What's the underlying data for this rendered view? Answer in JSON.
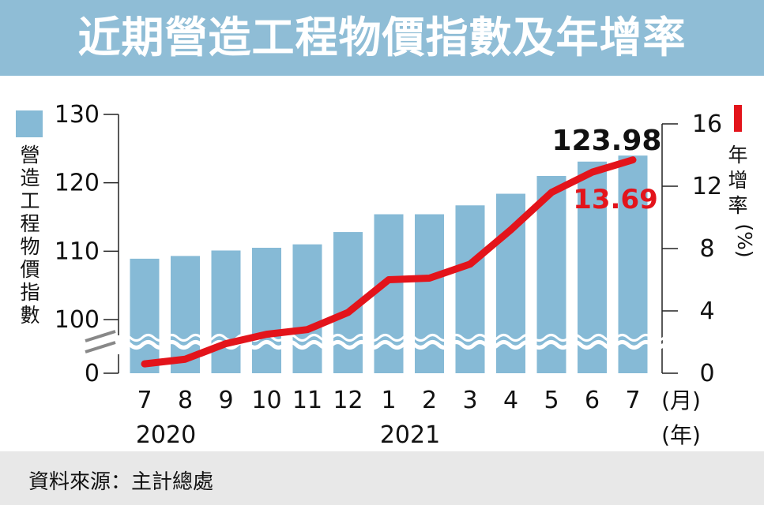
{
  "title": "近期營造工程物價指數及年增率",
  "source": "資料來源：主計總處",
  "legend": {
    "bar_label": "營造工程物價指數",
    "line_label": "年增率(%)"
  },
  "colors": {
    "bar": "#86bad6",
    "line": "#e3141b",
    "header": "#8fbdd6"
  },
  "chart_data": {
    "type": "bar+line",
    "categories": [
      "7",
      "8",
      "9",
      "10",
      "11",
      "12",
      "1",
      "2",
      "3",
      "4",
      "5",
      "6",
      "7"
    ],
    "month_unit": "(月)",
    "years": [
      {
        "label": "2020",
        "index": 0
      },
      {
        "label": "2021",
        "index": 6
      }
    ],
    "year_unit": "(年)",
    "left_axis": {
      "ticks": [
        "130",
        "120",
        "110",
        "100",
        "0"
      ],
      "broken": true,
      "ylim": [
        100,
        130
      ]
    },
    "right_axis": {
      "ticks": [
        "16",
        "12",
        "8",
        "4",
        "0"
      ],
      "ylim": [
        0,
        16
      ]
    },
    "bar_series": {
      "name": "營造工程物價指數",
      "values": [
        108.9,
        109.3,
        110.1,
        110.5,
        111.0,
        112.8,
        115.4,
        115.4,
        116.7,
        118.4,
        121.0,
        123.1,
        123.98
      ]
    },
    "line_series": {
      "name": "年增率",
      "values": [
        0.6,
        0.9,
        1.9,
        2.5,
        2.8,
        3.9,
        6.0,
        6.1,
        7.0,
        9.2,
        11.6,
        12.9,
        13.69
      ]
    },
    "annotations": {
      "last_bar": "123.98",
      "last_line": "13.69"
    }
  }
}
